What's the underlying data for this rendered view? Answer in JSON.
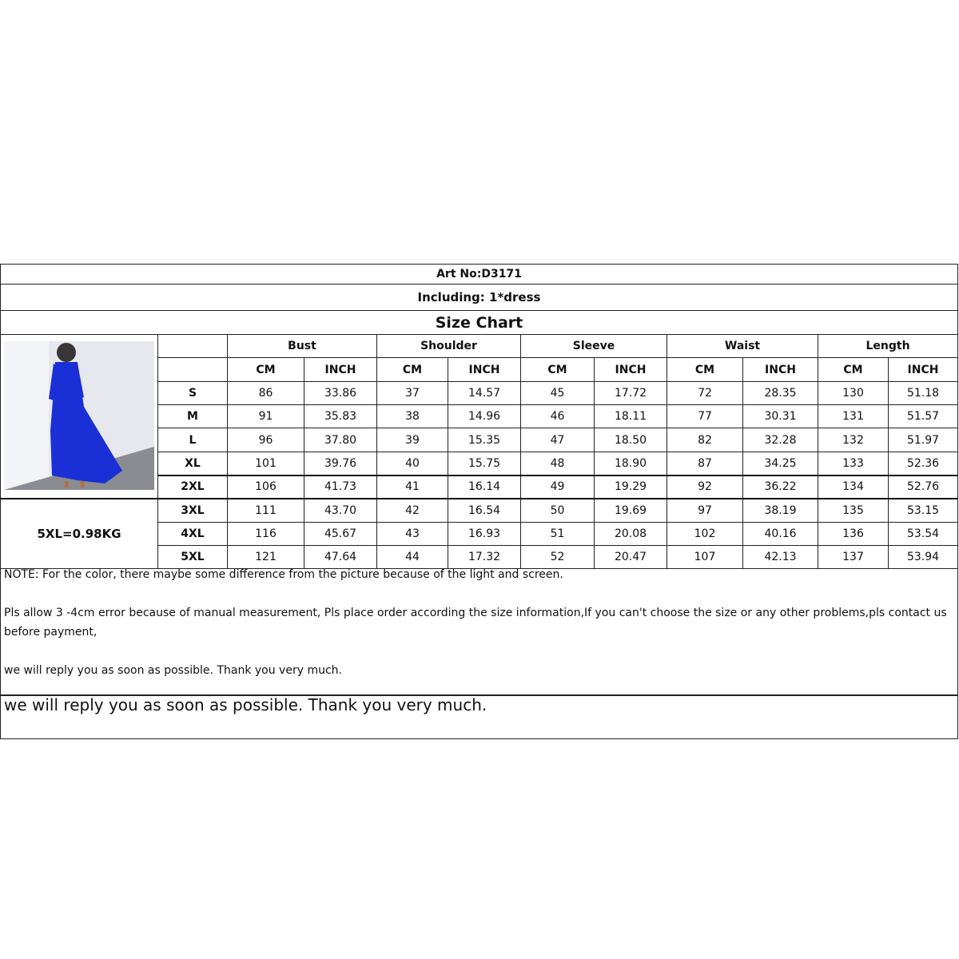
{
  "art_no": "Art No:D3171",
  "including": "Including:  1*dress",
  "title": "Size Chart",
  "weight_note": "5XL=0.98KG",
  "measurements": [
    "Bust",
    "Shoulder",
    "Sleeve",
    "Waist",
    "Length"
  ],
  "units": [
    "CM",
    "INCH"
  ],
  "rows": [
    {
      "size": "S",
      "values": [
        "86",
        "33.86",
        "37",
        "14.57",
        "45",
        "17.72",
        "72",
        "28.35",
        "130",
        "51.18"
      ]
    },
    {
      "size": "M",
      "values": [
        "91",
        "35.83",
        "38",
        "14.96",
        "46",
        "18.11",
        "77",
        "30.31",
        "131",
        "51.57"
      ]
    },
    {
      "size": "L",
      "values": [
        "96",
        "37.80",
        "39",
        "15.35",
        "47",
        "18.50",
        "82",
        "32.28",
        "132",
        "51.97"
      ]
    },
    {
      "size": "XL",
      "values": [
        "101",
        "39.76",
        "40",
        "15.75",
        "48",
        "18.90",
        "87",
        "34.25",
        "133",
        "52.36"
      ]
    },
    {
      "size": "2XL",
      "values": [
        "106",
        "41.73",
        "41",
        "16.14",
        "49",
        "19.29",
        "92",
        "36.22",
        "134",
        "52.76"
      ]
    },
    {
      "size": "3XL",
      "values": [
        "111",
        "43.70",
        "42",
        "16.54",
        "50",
        "19.69",
        "97",
        "38.19",
        "135",
        "53.15"
      ]
    },
    {
      "size": "4XL",
      "values": [
        "116",
        "45.67",
        "43",
        "16.93",
        "51",
        "20.08",
        "102",
        "40.16",
        "136",
        "53.54"
      ]
    },
    {
      "size": "5XL",
      "values": [
        "121",
        "47.64",
        "44",
        "17.32",
        "52",
        "20.47",
        "107",
        "42.13",
        "137",
        "53.94"
      ]
    }
  ],
  "notes": {
    "color": "NOTE:  For the color, there maybe some difference from the picture because of the light and screen.",
    "error": "Pls allow 3 -4cm error because of manual measurement, Pls place order according the size information,If you can't choose the size or any other problems,pls contact us before payment,",
    "reply": "we will reply you as soon as possible. Thank you very much."
  },
  "reply_large": "we will reply you as soon as possible. Thank you very much.",
  "colors": {
    "dress": "#1a2fd6",
    "wall": "#e6e8ee",
    "floor": "#8a8c92"
  }
}
